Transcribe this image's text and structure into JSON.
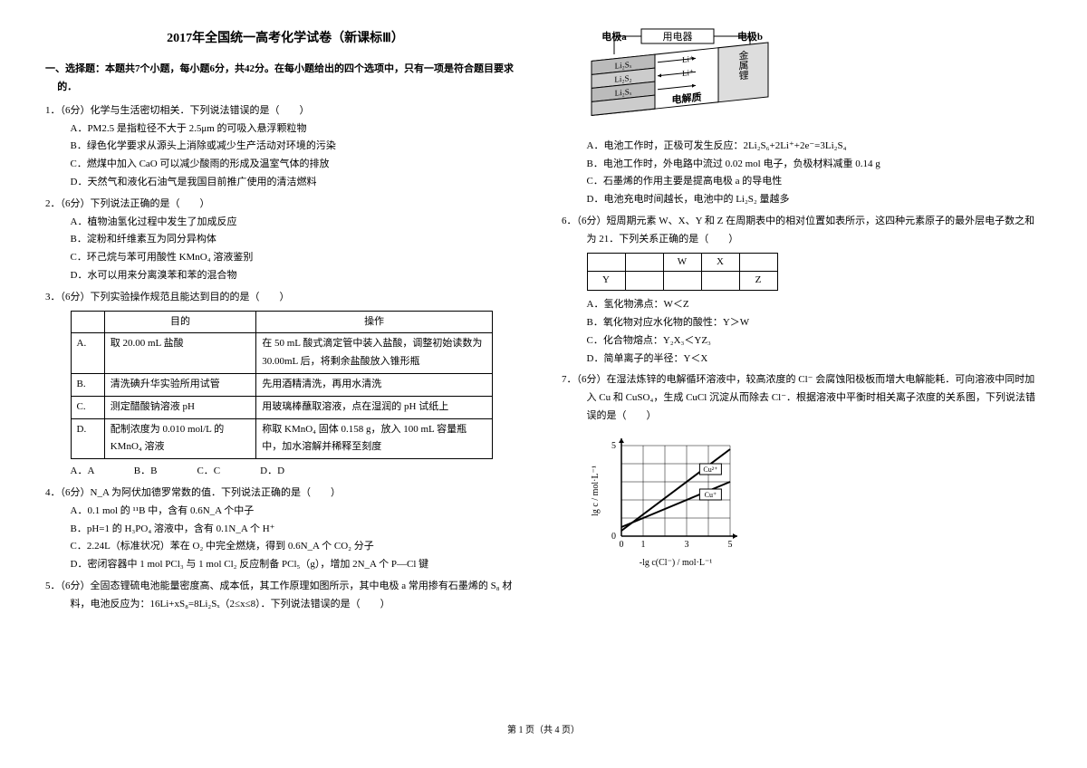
{
  "title": "2017年全国统一高考化学试卷（新课标Ⅲ）",
  "sectionHead": "一、选择题：本题共7个小题，每小题6分，共42分。在每小题给出的四个选项中，只有一项是符合题目要求的．",
  "q1": {
    "stem": "1．（6分）化学与生活密切相关．下列说法错误的是（　　）",
    "A": "A．PM2.5 是指粒径不大于 2.5μm 的可吸入悬浮颗粒物",
    "B": "B．绿色化学要求从源头上消除或减少生产活动对环境的污染",
    "C": "C．燃煤中加入 CaO 可以减少酸雨的形成及温室气体的排放",
    "D": "D．天然气和液化石油气是我国目前推广使用的清洁燃料"
  },
  "q2": {
    "stem": "2．（6分）下列说法正确的是（　　）",
    "A": "A．植物油氢化过程中发生了加成反应",
    "B": "B．淀粉和纤维素互为同分异构体",
    "C": "C．环己烷与苯可用酸性 KMnO₄ 溶液鉴别",
    "D": "D．水可以用来分离溴苯和苯的混合物"
  },
  "q3": {
    "stem": "3．（6分）下列实验操作规范且能达到目的的是（　　）",
    "th1": "目的",
    "th2": "操作",
    "rA1": "取 20.00 mL 盐酸",
    "rA2": "在 50 mL 酸式滴定管中装入盐酸，调整初始读数为 30.00mL 后，将剩余盐酸放入锥形瓶",
    "rB1": "清洗碘升华实验所用试管",
    "rB2": "先用酒精清洗，再用水清洗",
    "rC1": "测定醋酸钠溶液 pH",
    "rC2": "用玻璃棒蘸取溶液，点在湿润的 pH 试纸上",
    "rD1": "配制浓度为 0.010 mol/L 的 KMnO₄ 溶液",
    "rD2": "称取 KMnO₄ 固体 0.158 g，放入 100 mL 容量瓶中，加水溶解并稀释至刻度",
    "opts": "A．A　　　　B．B　　　　C．C　　　　D．D"
  },
  "q4": {
    "stem": "4．（6分）N_A 为阿伏加德罗常数的值．下列说法正确的是（　　）",
    "A": "A．0.1 mol 的 ¹¹B 中，含有 0.6N_A 个中子",
    "B": "B．pH=1 的 H₃PO₄ 溶液中，含有 0.1N_A 个 H⁺",
    "C": "C．2.24L（标准状况）苯在 O₂ 中完全燃烧，得到 0.6N_A 个 CO₂ 分子",
    "D": "D．密闭容器中 1 mol PCl₃ 与 1 mol Cl₂ 反应制备 PCl₅（g），增加 2N_A 个 P—Cl 键"
  },
  "q5": {
    "stem": "5．（6分）全固态锂硫电池能量密度高、成本低，其工作原理如图所示，其中电极 a 常用掺有石墨烯的 S₈ 材料，电池反应为：16Li+xS₈=8Li₂Sₓ（2≤x≤8）．下列说法错误的是（　　）",
    "fig": {
      "labA": "电极a",
      "labMid": "用电器",
      "labB": "电极b",
      "l1": "Li₂Sₓ",
      "l2": "Li₂S₂",
      "l3": "Li₂Sₓ",
      "li": "Li⁺",
      "elec": "电解质",
      "metal": "金属锂",
      "stroke": "#000",
      "fill": "#fff",
      "gray": "#999"
    },
    "A": "A．电池工作时，正极可发生反应：2Li₂S₆+2Li⁺+2e⁻=3Li₂S₄",
    "B": "B．电池工作时，外电路中流过 0.02 mol 电子，负极材料减重 0.14 g",
    "C": "C．石墨烯的作用主要是提高电极 a 的导电性",
    "D": "D．电池充电时间越长，电池中的 Li₂S₂ 量越多"
  },
  "q6": {
    "stem": "6．（6分）短周期元素 W、X、Y 和 Z 在周期表中的相对位置如表所示，这四种元素原子的最外层电子数之和为 21．下列关系正确的是（　　）",
    "grid": {
      "W": "W",
      "X": "X",
      "Y": "Y",
      "Z": "Z"
    },
    "A": "A．氢化物沸点：W＜Z",
    "B": "B．氧化物对应水化物的酸性：Y＞W",
    "C": "C．化合物熔点：Y₂X₃＜YZ₃",
    "D": "D．简单离子的半径：Y＜X"
  },
  "q7": {
    "stem": "7．（6分）在湿法炼锌的电解循环溶液中，较高浓度的 Cl⁻ 会腐蚀阳极板而增大电解能耗．可向溶液中同时加入 Cu 和 CuSO₄，生成 CuCl 沉淀从而除去 Cl⁻．根据溶液中平衡时相关离子浓度的关系图，下列说法错误的是（　　）",
    "fig": {
      "xmin": 0,
      "xmax": 5,
      "ymin": 0,
      "ymax": 5,
      "xticks": [
        "0",
        "1",
        "",
        "3",
        "",
        "5"
      ],
      "yticks": [
        "0",
        "",
        "",
        "",
        "",
        "5"
      ],
      "cu2": "Cu²⁺",
      "cu1": "Cu⁺",
      "xlabel": "-lg c(Cl⁻) / mol·L⁻¹",
      "ylabel": "lg c / mol·L⁻¹",
      "line1": [
        [
          0,
          0.3
        ],
        [
          5,
          4.8
        ]
      ],
      "line2": [
        [
          0,
          0.5
        ],
        [
          5,
          3.0
        ]
      ],
      "stroke": "#000"
    }
  },
  "footer": "第 1 页（共 4 页）"
}
